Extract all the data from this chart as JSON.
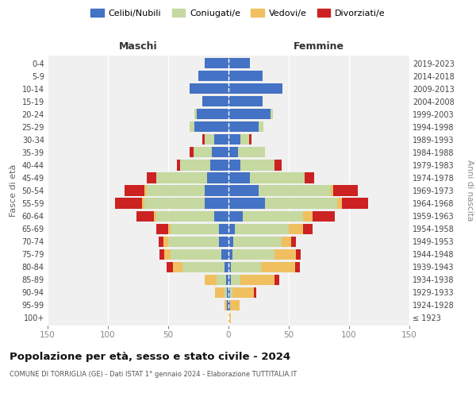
{
  "age_groups": [
    "100+",
    "95-99",
    "90-94",
    "85-89",
    "80-84",
    "75-79",
    "70-74",
    "65-69",
    "60-64",
    "55-59",
    "50-54",
    "45-49",
    "40-44",
    "35-39",
    "30-34",
    "25-29",
    "20-24",
    "15-19",
    "10-14",
    "5-9",
    "0-4"
  ],
  "birth_years": [
    "≤ 1923",
    "1924-1928",
    "1929-1933",
    "1934-1938",
    "1939-1943",
    "1944-1948",
    "1949-1953",
    "1954-1958",
    "1959-1963",
    "1964-1968",
    "1969-1973",
    "1974-1978",
    "1979-1983",
    "1984-1988",
    "1989-1993",
    "1994-1998",
    "1999-2003",
    "2004-2008",
    "2009-2013",
    "2014-2018",
    "2019-2023"
  ],
  "colors": {
    "celibi": "#4472C4",
    "coniugati": "#c5d9a0",
    "vedovi": "#f0c060",
    "divorziati": "#cc2222"
  },
  "m_cel": [
    0,
    1,
    1,
    2,
    3,
    6,
    8,
    8,
    12,
    20,
    20,
    18,
    15,
    14,
    12,
    28,
    26,
    22,
    32,
    25,
    20
  ],
  "m_con": [
    0,
    0,
    2,
    8,
    35,
    42,
    42,
    40,
    48,
    50,
    48,
    42,
    25,
    15,
    8,
    4,
    2,
    0,
    0,
    0,
    0
  ],
  "m_ved": [
    0,
    2,
    8,
    10,
    8,
    5,
    4,
    2,
    2,
    2,
    2,
    0,
    0,
    0,
    0,
    0,
    0,
    0,
    0,
    0,
    0
  ],
  "m_div": [
    0,
    0,
    0,
    0,
    5,
    4,
    4,
    10,
    14,
    22,
    16,
    8,
    3,
    3,
    2,
    0,
    0,
    0,
    0,
    0,
    0
  ],
  "f_cel": [
    0,
    1,
    1,
    2,
    2,
    3,
    4,
    5,
    12,
    30,
    25,
    18,
    10,
    8,
    10,
    25,
    35,
    28,
    45,
    28,
    18
  ],
  "f_con": [
    0,
    0,
    2,
    8,
    25,
    35,
    40,
    45,
    50,
    60,
    60,
    45,
    28,
    22,
    7,
    4,
    2,
    0,
    0,
    0,
    0
  ],
  "f_ved": [
    2,
    8,
    18,
    28,
    28,
    18,
    8,
    12,
    8,
    4,
    2,
    0,
    0,
    0,
    0,
    0,
    0,
    0,
    0,
    0,
    0
  ],
  "f_div": [
    0,
    0,
    2,
    4,
    4,
    4,
    4,
    8,
    18,
    22,
    20,
    8,
    6,
    0,
    2,
    0,
    0,
    0,
    0,
    0,
    0
  ],
  "xlim": 150,
  "title": "Popolazione per età, sesso e stato civile - 2024",
  "subtitle": "COMUNE DI TORRIGLIA (GE) - Dati ISTAT 1° gennaio 2024 - Elaborazione TUTTITALIA.IT",
  "ylabel_left": "Fasce di età",
  "ylabel_right": "Anni di nascita",
  "xlabel_left": "Maschi",
  "xlabel_right": "Femmine",
  "legend_labels": [
    "Celibi/Nubili",
    "Coniugati/e",
    "Vedovi/e",
    "Divorziati/e"
  ],
  "background": "#f0f0f0"
}
